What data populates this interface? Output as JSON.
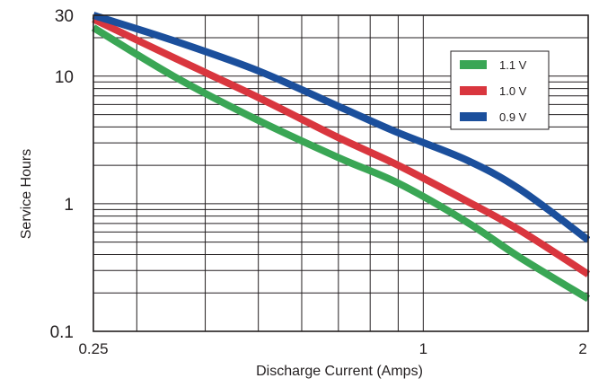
{
  "chart_data": {
    "type": "line",
    "title": "",
    "xlabel": "Discharge Current (Amps)",
    "ylabel": "Service Hours",
    "x_scale": "log",
    "y_scale": "log",
    "xlim": [
      0.25,
      2
    ],
    "ylim": [
      0.1,
      30
    ],
    "grid": true,
    "legend_position": "top-right",
    "x_ticks": [
      {
        "value": 0.25,
        "label": "0.25"
      },
      {
        "value": 1,
        "label": "1"
      },
      {
        "value": 2,
        "label": "2"
      }
    ],
    "y_ticks": [
      {
        "value": 0.1,
        "label": "0.1"
      },
      {
        "value": 1,
        "label": "1"
      },
      {
        "value": 10,
        "label": "10"
      },
      {
        "value": 30,
        "label": "30"
      }
    ],
    "series": [
      {
        "name": "1.1 V",
        "color": "#3aa655",
        "x": [
          0.25,
          0.35,
          0.5,
          0.7,
          0.9,
          1.2,
          1.5,
          2
        ],
        "y": [
          24,
          10,
          4.5,
          2.3,
          1.45,
          0.72,
          0.38,
          0.18
        ]
      },
      {
        "name": "1.0 V",
        "color": "#d9363e",
        "x": [
          0.25,
          0.35,
          0.5,
          0.7,
          0.9,
          1.2,
          1.5,
          2
        ],
        "y": [
          28,
          14,
          6.8,
          3.3,
          2.0,
          1.05,
          0.62,
          0.28
        ]
      },
      {
        "name": "0.9 V",
        "color": "#1b4f9c",
        "x": [
          0.25,
          0.35,
          0.5,
          0.7,
          0.9,
          1.2,
          1.5,
          2
        ],
        "y": [
          30,
          19,
          11,
          5.8,
          3.6,
          2.2,
          1.3,
          0.52
        ]
      }
    ]
  }
}
